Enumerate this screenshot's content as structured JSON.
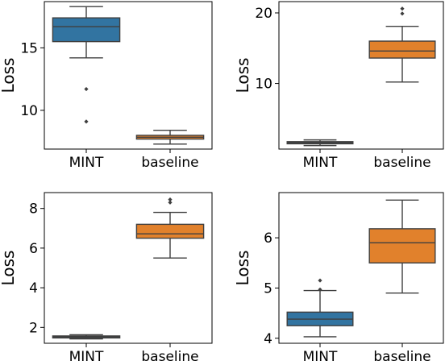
{
  "chart_data": [
    {
      "type": "box",
      "ylabel": "Loss",
      "ylim": [
        6.9,
        18.7
      ],
      "yticks": [
        10,
        15
      ],
      "categories": [
        "MINT",
        "baseline"
      ],
      "colors": [
        "#3274a1",
        "#e1812c"
      ],
      "boxes": [
        {
          "whisker_low": 14.2,
          "q1": 15.5,
          "median": 16.7,
          "q3": 17.4,
          "whisker_high": 18.3,
          "outliers": [
            11.7,
            9.1
          ]
        },
        {
          "whisker_low": 7.3,
          "q1": 7.7,
          "median": 7.85,
          "q3": 8.0,
          "whisker_high": 8.4,
          "outliers": []
        }
      ]
    },
    {
      "type": "box",
      "ylabel": "Loss",
      "ylim": [
        0.7,
        21.6
      ],
      "yticks": [
        10,
        20
      ],
      "categories": [
        "MINT",
        "baseline"
      ],
      "colors": [
        "#3274a1",
        "#e1812c"
      ],
      "boxes": [
        {
          "whisker_low": 1.2,
          "q1": 1.45,
          "median": 1.6,
          "q3": 1.75,
          "whisker_high": 2.0,
          "outliers": []
        },
        {
          "whisker_low": 10.2,
          "q1": 13.6,
          "median": 14.6,
          "q3": 16.0,
          "whisker_high": 18.1,
          "outliers": [
            19.9,
            20.6
          ]
        }
      ]
    },
    {
      "type": "box",
      "ylabel": "Loss",
      "ylim": [
        1.2,
        8.8
      ],
      "yticks": [
        2,
        4,
        6,
        8
      ],
      "categories": [
        "MINT",
        "baseline"
      ],
      "colors": [
        "#3274a1",
        "#e1812c"
      ],
      "boxes": [
        {
          "whisker_low": 1.42,
          "q1": 1.47,
          "median": 1.52,
          "q3": 1.57,
          "whisker_high": 1.63,
          "outliers": []
        },
        {
          "whisker_low": 5.5,
          "q1": 6.5,
          "median": 6.72,
          "q3": 7.2,
          "whisker_high": 7.8,
          "outliers": [
            8.3,
            8.45
          ]
        }
      ]
    },
    {
      "type": "box",
      "ylabel": "Loss",
      "ylim": [
        3.9,
        6.9
      ],
      "yticks": [
        4,
        5,
        6
      ],
      "categories": [
        "MINT",
        "baseline"
      ],
      "colors": [
        "#3274a1",
        "#e1812c"
      ],
      "boxes": [
        {
          "whisker_low": 4.03,
          "q1": 4.25,
          "median": 4.38,
          "q3": 4.52,
          "whisker_high": 4.95,
          "outliers": [
            5.15,
            4.97
          ]
        },
        {
          "whisker_low": 4.9,
          "q1": 5.5,
          "median": 5.9,
          "q3": 6.18,
          "whisker_high": 6.75,
          "outliers": []
        }
      ]
    }
  ]
}
